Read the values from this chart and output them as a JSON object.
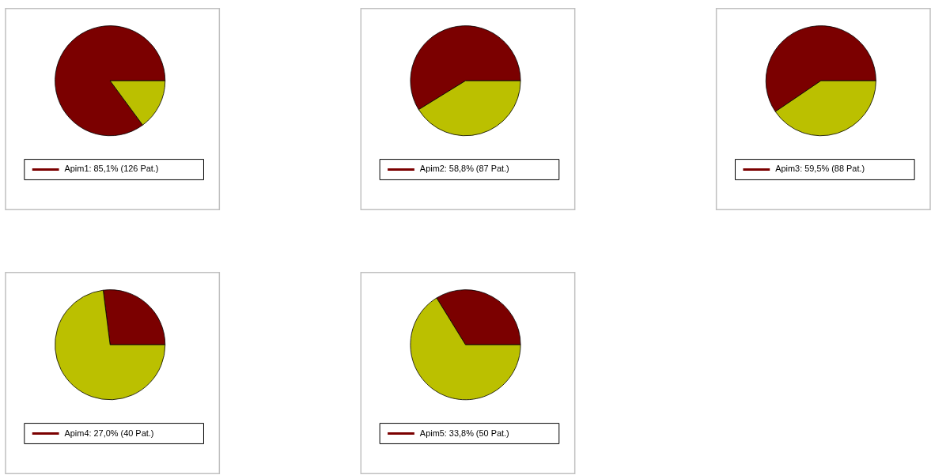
{
  "chart_data": [
    {
      "type": "pie",
      "categories": [
        "Apim1: 85,1% (126 Pat.)",
        null
      ],
      "values": [
        85.1,
        14.9
      ],
      "colors": [
        "#7b0000",
        "#bbc000"
      ],
      "legend": "bottom"
    },
    {
      "type": "pie",
      "categories": [
        "Apim2: 58,8% (87 Pat.)",
        null
      ],
      "values": [
        58.8,
        41.2
      ],
      "colors": [
        "#7b0000",
        "#bbc000"
      ],
      "legend": "bottom"
    },
    {
      "type": "pie",
      "categories": [
        "Apim3: 59,5% (88 Pat.)",
        null
      ],
      "values": [
        59.5,
        40.5
      ],
      "colors": [
        "#7b0000",
        "#bbc000"
      ],
      "legend": "bottom"
    },
    {
      "type": "pie",
      "categories": [
        "Apim4: 27,0% (40 Pat.)",
        null
      ],
      "values": [
        27.0,
        73.0
      ],
      "colors": [
        "#7b0000",
        "#bbc000"
      ],
      "legend": "bottom"
    },
    {
      "type": "pie",
      "categories": [
        "Apim5: 33,8% (50 Pat.)",
        null
      ],
      "values": [
        33.8,
        66.2
      ],
      "colors": [
        "#7b0000",
        "#bbc000"
      ],
      "legend": "bottom"
    }
  ]
}
